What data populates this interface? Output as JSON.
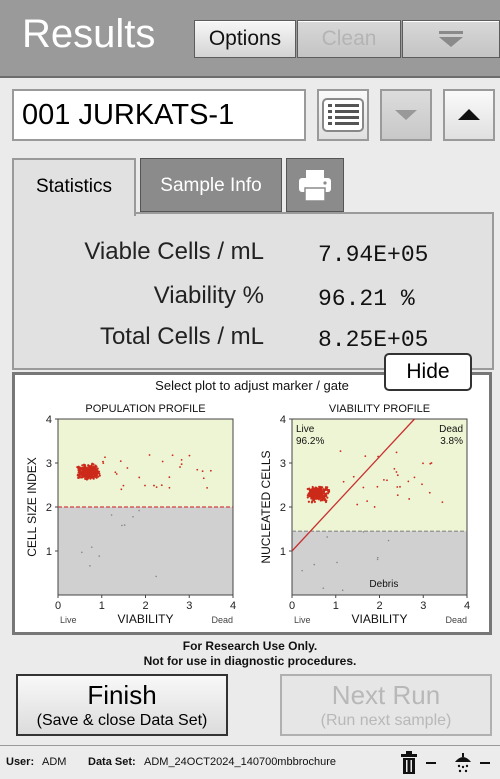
{
  "header": {
    "title": "Results",
    "options_label": "Options",
    "clean_label": "Clean"
  },
  "sample": {
    "name": "001 JURKATS-1"
  },
  "tabs": [
    {
      "label": "Statistics",
      "active": true
    },
    {
      "label": "Sample Info",
      "active": false
    }
  ],
  "stats": [
    {
      "label": "Viable Cells / mL",
      "value": "7.94E+05"
    },
    {
      "label": "Viability %",
      "value": "96.21 %"
    },
    {
      "label": "Total Cells / mL",
      "value": "8.25E+05"
    }
  ],
  "hide_label": "Hide",
  "plots": {
    "instruction": "Select plot to adjust marker / gate",
    "population": {
      "title": "POPULATION PROFILE",
      "ylabel": "CELL SIZE INDEX",
      "xlabel": "VIABILITY",
      "xlim": [
        0,
        4
      ],
      "ylim": [
        0,
        4
      ],
      "xticks": [
        "0",
        "1",
        "2",
        "3",
        "4"
      ],
      "yticks": [
        "0",
        "1",
        "2",
        "3",
        "4"
      ],
      "live_label": "Live",
      "dead_label": "Dead",
      "gate_y": 2.0
    },
    "viability": {
      "title": "VIABILITY PROFILE",
      "ylabel": "NUCLEATED CELLS",
      "xlabel": "VIABILITY",
      "xlim": [
        0,
        4
      ],
      "ylim": [
        0,
        4
      ],
      "xticks": [
        "0",
        "1",
        "2",
        "3",
        "4"
      ],
      "yticks": [
        "0",
        "1",
        "2",
        "3",
        "4"
      ],
      "live_label": "Live",
      "live_pct": "96.2%",
      "dead_label": "Dead",
      "dead_pct": "3.8%",
      "debris_label": "Debris",
      "gate_y": 1.45,
      "marker_line": [
        [
          0,
          1.0
        ],
        [
          2.8,
          4.0
        ]
      ]
    }
  },
  "disclaimer": {
    "line1": "For Research Use Only.",
    "line2": "Not for use in diagnostic procedures."
  },
  "finish": {
    "title": "Finish",
    "subtitle": "(Save & close Data Set)"
  },
  "next_run": {
    "title": "Next Run",
    "subtitle": "(Run next sample)"
  },
  "footer": {
    "user_label": "User:",
    "user": "ADM",
    "dataset_label": "Data Set:",
    "dataset": "ADM_24OCT2024_140700mbbrochure"
  },
  "colors": {
    "header_bg": "#9a9a9a",
    "live_region": "#eef5d4",
    "debris_region": "#d0d0d0",
    "cell_cluster": "#cc2a1a",
    "gate_line": "#d04040"
  }
}
